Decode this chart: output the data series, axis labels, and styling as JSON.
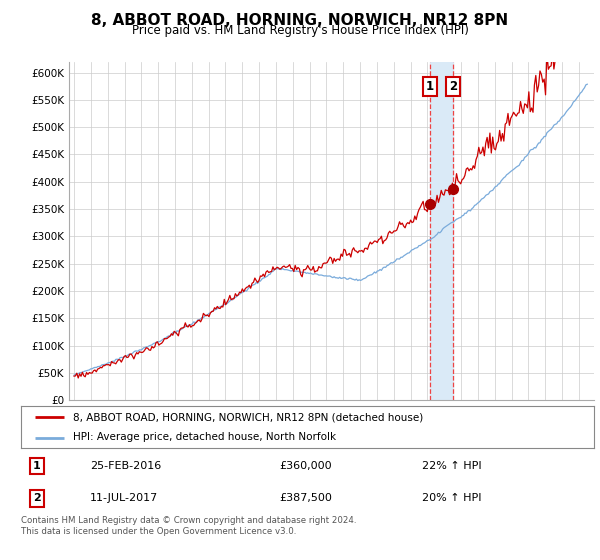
{
  "title": "8, ABBOT ROAD, HORNING, NORWICH, NR12 8PN",
  "subtitle": "Price paid vs. HM Land Registry's House Price Index (HPI)",
  "ylim": [
    0,
    620000
  ],
  "yticks": [
    0,
    50000,
    100000,
    150000,
    200000,
    250000,
    300000,
    350000,
    400000,
    450000,
    500000,
    550000,
    600000
  ],
  "ytick_labels": [
    "£0",
    "£50K",
    "£100K",
    "£150K",
    "£200K",
    "£250K",
    "£300K",
    "£350K",
    "£400K",
    "£450K",
    "£500K",
    "£550K",
    "£600K"
  ],
  "bg_color": "#ffffff",
  "grid_color": "#cccccc",
  "hpi_color": "#7aabdb",
  "price_color": "#cc0000",
  "marker_color": "#aa0000",
  "vline_color": "#ee4444",
  "vshade_color": "#daeaf7",
  "transaction1_year": 2016.14,
  "transaction2_year": 2017.53,
  "transaction1_price": 360000,
  "transaction2_price": 387500,
  "xlim_left": 1994.7,
  "xlim_right": 2025.9,
  "legend_entries": [
    "8, ABBOT ROAD, HORNING, NORWICH, NR12 8PN (detached house)",
    "HPI: Average price, detached house, North Norfolk"
  ],
  "table_rows": [
    [
      "1",
      "25-FEB-2016",
      "£360,000",
      "22% ↑ HPI"
    ],
    [
      "2",
      "11-JUL-2017",
      "£387,500",
      "20% ↑ HPI"
    ]
  ],
  "footer": "Contains HM Land Registry data © Crown copyright and database right 2024.\nThis data is licensed under the Open Government Licence v3.0."
}
